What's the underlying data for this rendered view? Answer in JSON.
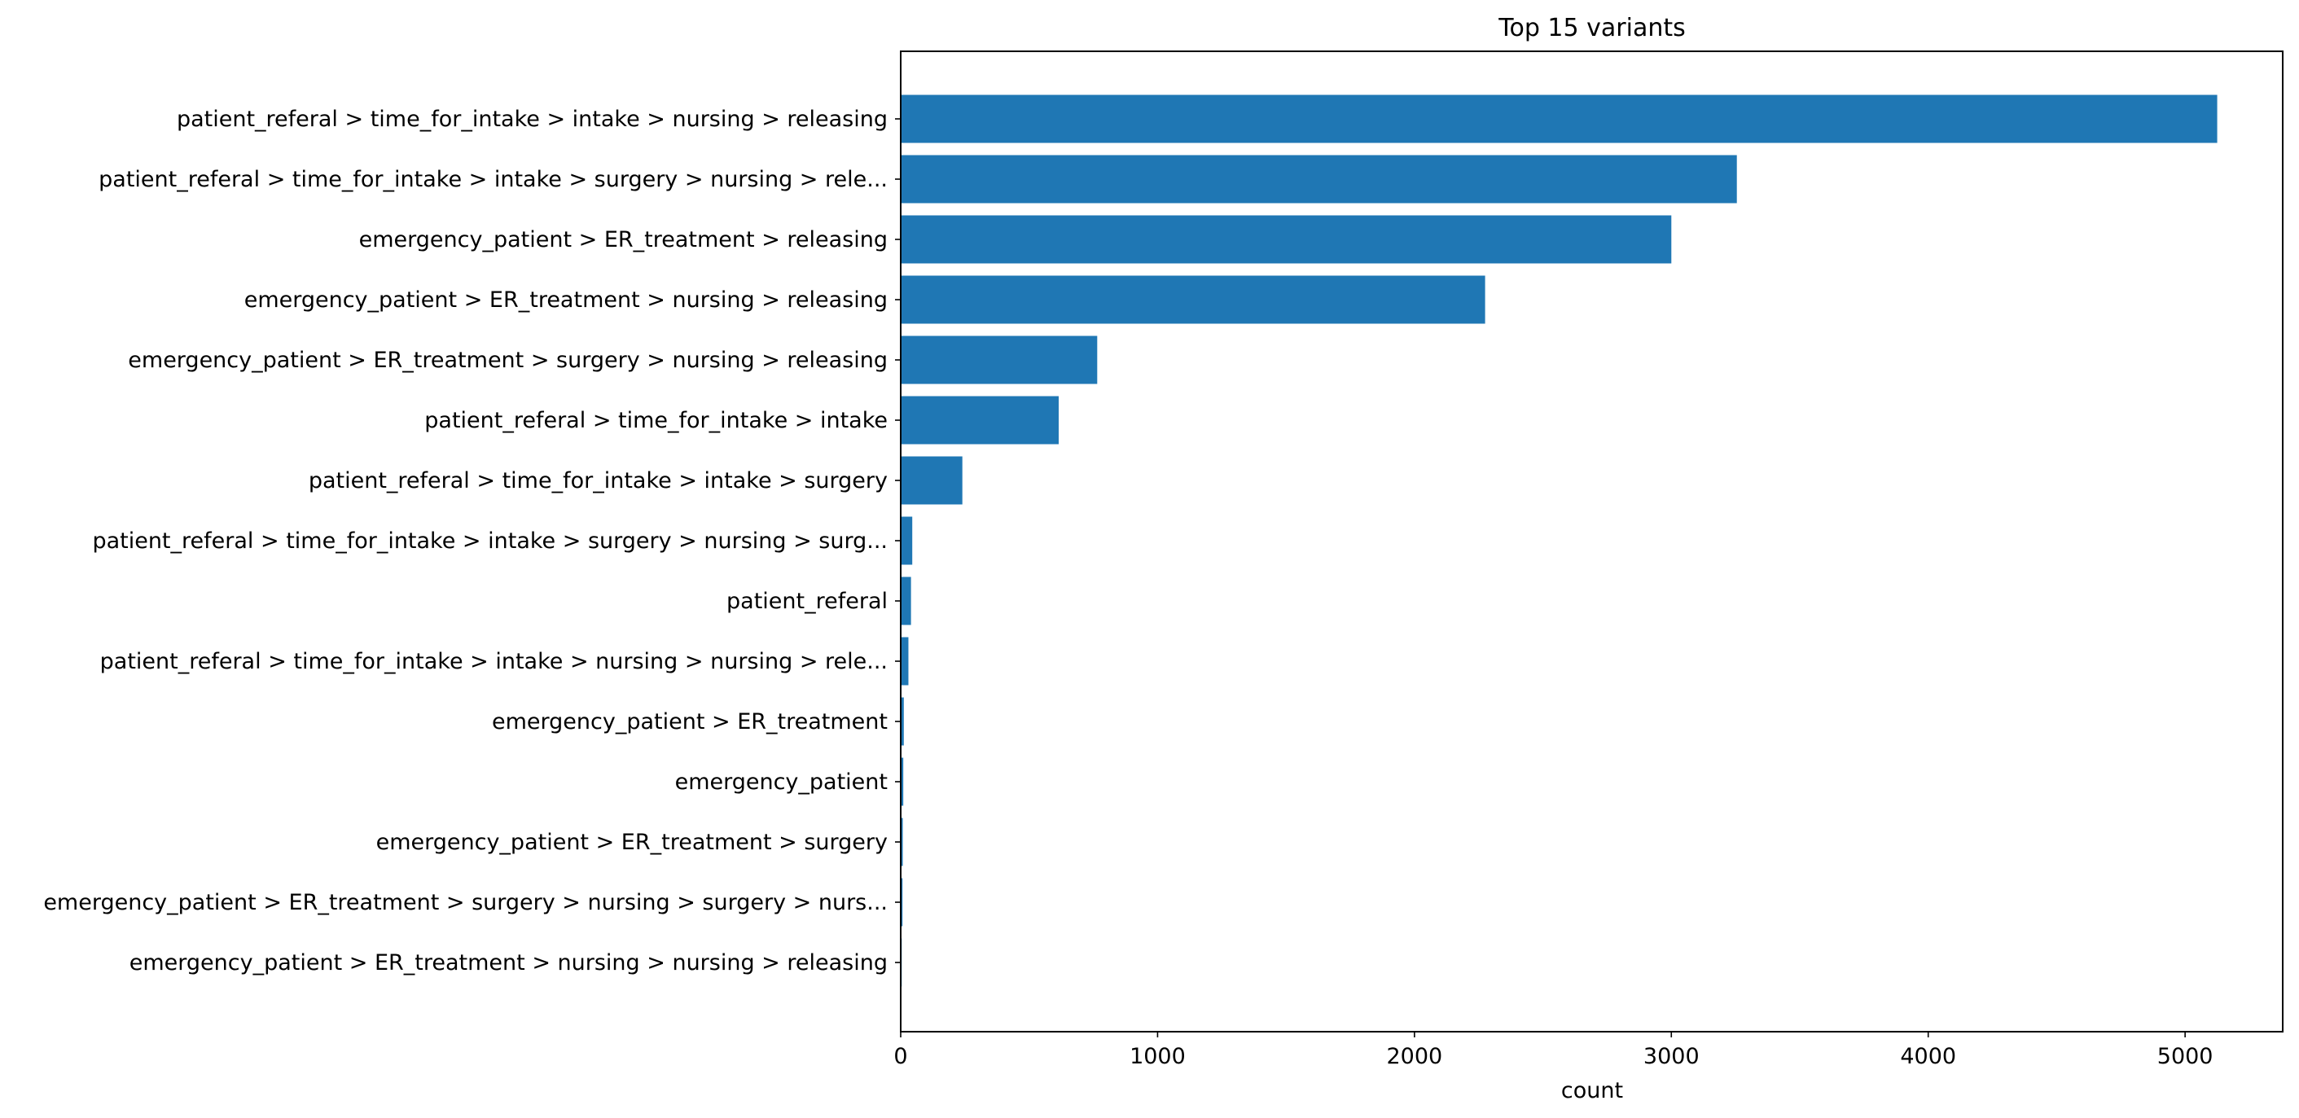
{
  "chart_data": {
    "type": "bar",
    "orientation": "horizontal",
    "title": "Top 15 variants",
    "xlabel": "count",
    "ylabel": "",
    "xlim": [
      0,
      5380
    ],
    "xticks": [
      0,
      1000,
      2000,
      3000,
      4000,
      5000
    ],
    "grid": false,
    "legend": "none",
    "bar_color": "#1f77b4",
    "categories": [
      "patient_referal > time_for_intake > intake > nursing > releasing",
      "patient_referal > time_for_intake > intake > surgery > nursing > rele...",
      "emergency_patient > ER_treatment > releasing",
      "emergency_patient > ER_treatment > nursing > releasing",
      "emergency_patient > ER_treatment > surgery > nursing > releasing",
      "patient_referal > time_for_intake > intake",
      "patient_referal > time_for_intake > intake > surgery",
      "patient_referal > time_for_intake > intake > surgery > nursing > surg...",
      "patient_referal",
      "patient_referal > time_for_intake > intake > nursing > nursing > rele...",
      "emergency_patient > ER_treatment",
      "emergency_patient",
      "emergency_patient > ER_treatment > surgery",
      "emergency_patient > ER_treatment > surgery > nursing > surgery > nurs...",
      "emergency_patient > ER_treatment > nursing > nursing > releasing"
    ],
    "values": [
      5125,
      3255,
      3000,
      2275,
      765,
      615,
      240,
      45,
      40,
      30,
      12,
      10,
      8,
      7,
      4
    ]
  }
}
